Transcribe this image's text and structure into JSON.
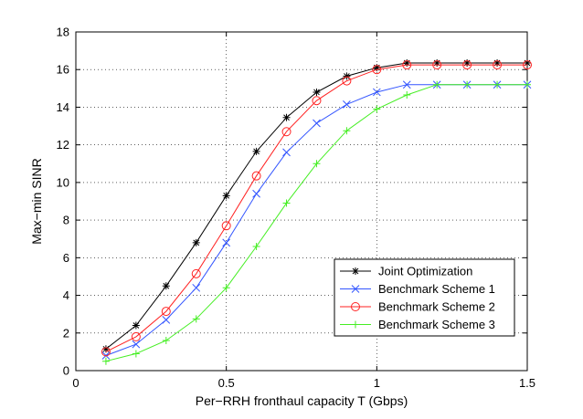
{
  "chart_data": {
    "type": "line",
    "title": "",
    "xlabel": "Per−RRH fronthaul capacity T (Gbps)",
    "ylabel": "Max−min SINR",
    "xlim": [
      0,
      1.5
    ],
    "ylim": [
      0,
      18
    ],
    "xticks": [
      0,
      0.5,
      1,
      1.5
    ],
    "xtick_labels": [
      "0",
      "0.5",
      "1",
      "1.5"
    ],
    "yticks": [
      0,
      2,
      4,
      6,
      8,
      10,
      12,
      14,
      16,
      18
    ],
    "ytick_labels": [
      "0",
      "2",
      "4",
      "6",
      "8",
      "10",
      "12",
      "14",
      "16",
      "18"
    ],
    "grid": true,
    "legend_position": "bottom-right",
    "x": [
      0.1,
      0.2,
      0.3,
      0.4,
      0.5,
      0.6,
      0.7,
      0.8,
      0.9,
      1.0,
      1.1,
      1.2,
      1.3,
      1.4,
      1.5
    ],
    "series": [
      {
        "name": "Joint Optimization",
        "color": "#000000",
        "marker": "asterisk",
        "values": [
          1.15,
          2.4,
          4.5,
          6.8,
          9.3,
          11.65,
          13.45,
          14.8,
          15.65,
          16.1,
          16.35,
          16.35,
          16.35,
          16.35,
          16.35
        ]
      },
      {
        "name": "Benchmark Scheme 1",
        "color": "#3355ff",
        "marker": "x",
        "values": [
          0.8,
          1.4,
          2.7,
          4.4,
          6.8,
          9.4,
          11.6,
          13.15,
          14.15,
          14.8,
          15.2,
          15.2,
          15.2,
          15.2,
          15.2
        ]
      },
      {
        "name": "Benchmark Scheme 2",
        "color": "#ff2222",
        "marker": "circle",
        "values": [
          1.0,
          1.8,
          3.15,
          5.15,
          7.7,
          10.35,
          12.7,
          14.35,
          15.4,
          16.0,
          16.25,
          16.25,
          16.25,
          16.25,
          16.25
        ]
      },
      {
        "name": "Benchmark Scheme 3",
        "color": "#44ee22",
        "marker": "plus",
        "values": [
          0.5,
          0.9,
          1.6,
          2.75,
          4.4,
          6.6,
          8.9,
          11.0,
          12.75,
          13.9,
          14.65,
          15.2,
          15.2,
          15.2,
          15.2
        ]
      }
    ]
  }
}
